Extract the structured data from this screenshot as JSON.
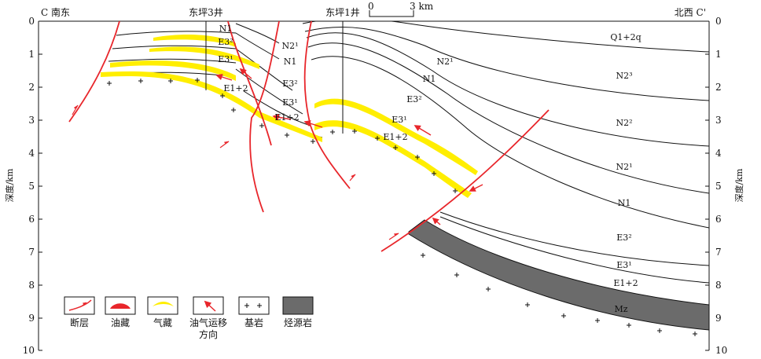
{
  "header": {
    "left": "C 南东",
    "right": "北西 C'",
    "well3": "东坪3井",
    "well1": "东坪1井",
    "scale_zero": "0",
    "scale_three": "3 km"
  },
  "axis": {
    "label_left": "深度/km",
    "label_right": "深度/km",
    "ticks": [
      "0",
      "1",
      "2",
      "3",
      "4",
      "5",
      "6",
      "7",
      "8",
      "9",
      "10"
    ]
  },
  "strata": {
    "Q": "Q1+2q",
    "N23": "N2³",
    "N22": "N2²",
    "N21_right": "N2¹",
    "N1_right": "N1",
    "E32_right": "E3²",
    "E31_right": "E3¹",
    "E12_right": "E1+2",
    "Mz": "Mz",
    "N1_top": "N1",
    "E32_top": "E3²",
    "E31_top": "E3¹",
    "E12_left": "E1+2",
    "N21_mid": "N2¹",
    "N1_mid": "N1",
    "E32_mid": "E3²",
    "E31_mid": "E3¹",
    "E12_mid": "E1+2",
    "N21_east": "N2¹",
    "N1_east": "N1",
    "E32_east": "E3²",
    "E31_east": "E3¹",
    "E12_east": "E1+2"
  },
  "legend": {
    "fault": "断层",
    "oil": "油藏",
    "gas": "气藏",
    "migration": "油气运移\n方向",
    "basement": "基岩",
    "source": "烃源岩"
  },
  "colors": {
    "fault": "#e8262b",
    "gas": "#ffee00",
    "source": "#6b6b6b",
    "line": "#111111"
  }
}
